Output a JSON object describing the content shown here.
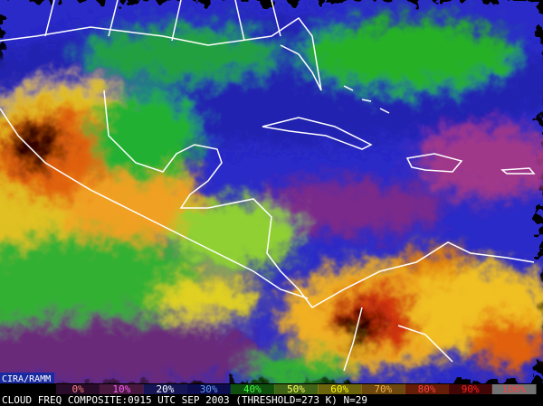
{
  "credit": "CIRA/RAMM",
  "legend": {
    "labels": [
      "0%",
      "10%",
      "20%",
      "30%",
      "40%",
      "50%",
      "60%",
      "70%",
      "80%",
      "90%",
      "100%"
    ],
    "colors": [
      "#5a1a5a",
      "#a0388a",
      "#3030c0",
      "#1a1ab0",
      "#20b020",
      "#90e030",
      "#f0e020",
      "#f0a020",
      "#e04010",
      "#901010",
      "#ffffff"
    ],
    "label_colors": [
      "#ff8080",
      "#ff60ff",
      "#ffffff",
      "#60a0ff",
      "#40ff40",
      "#ffff60",
      "#ffff00",
      "#ffb040",
      "#ff4040",
      "#ff2020",
      "#ff4040"
    ]
  },
  "caption": "CLOUD FREQ COMPOSITE:0915 UTC SEP 2003 (THRESHOLD=273 K) N=29"
}
